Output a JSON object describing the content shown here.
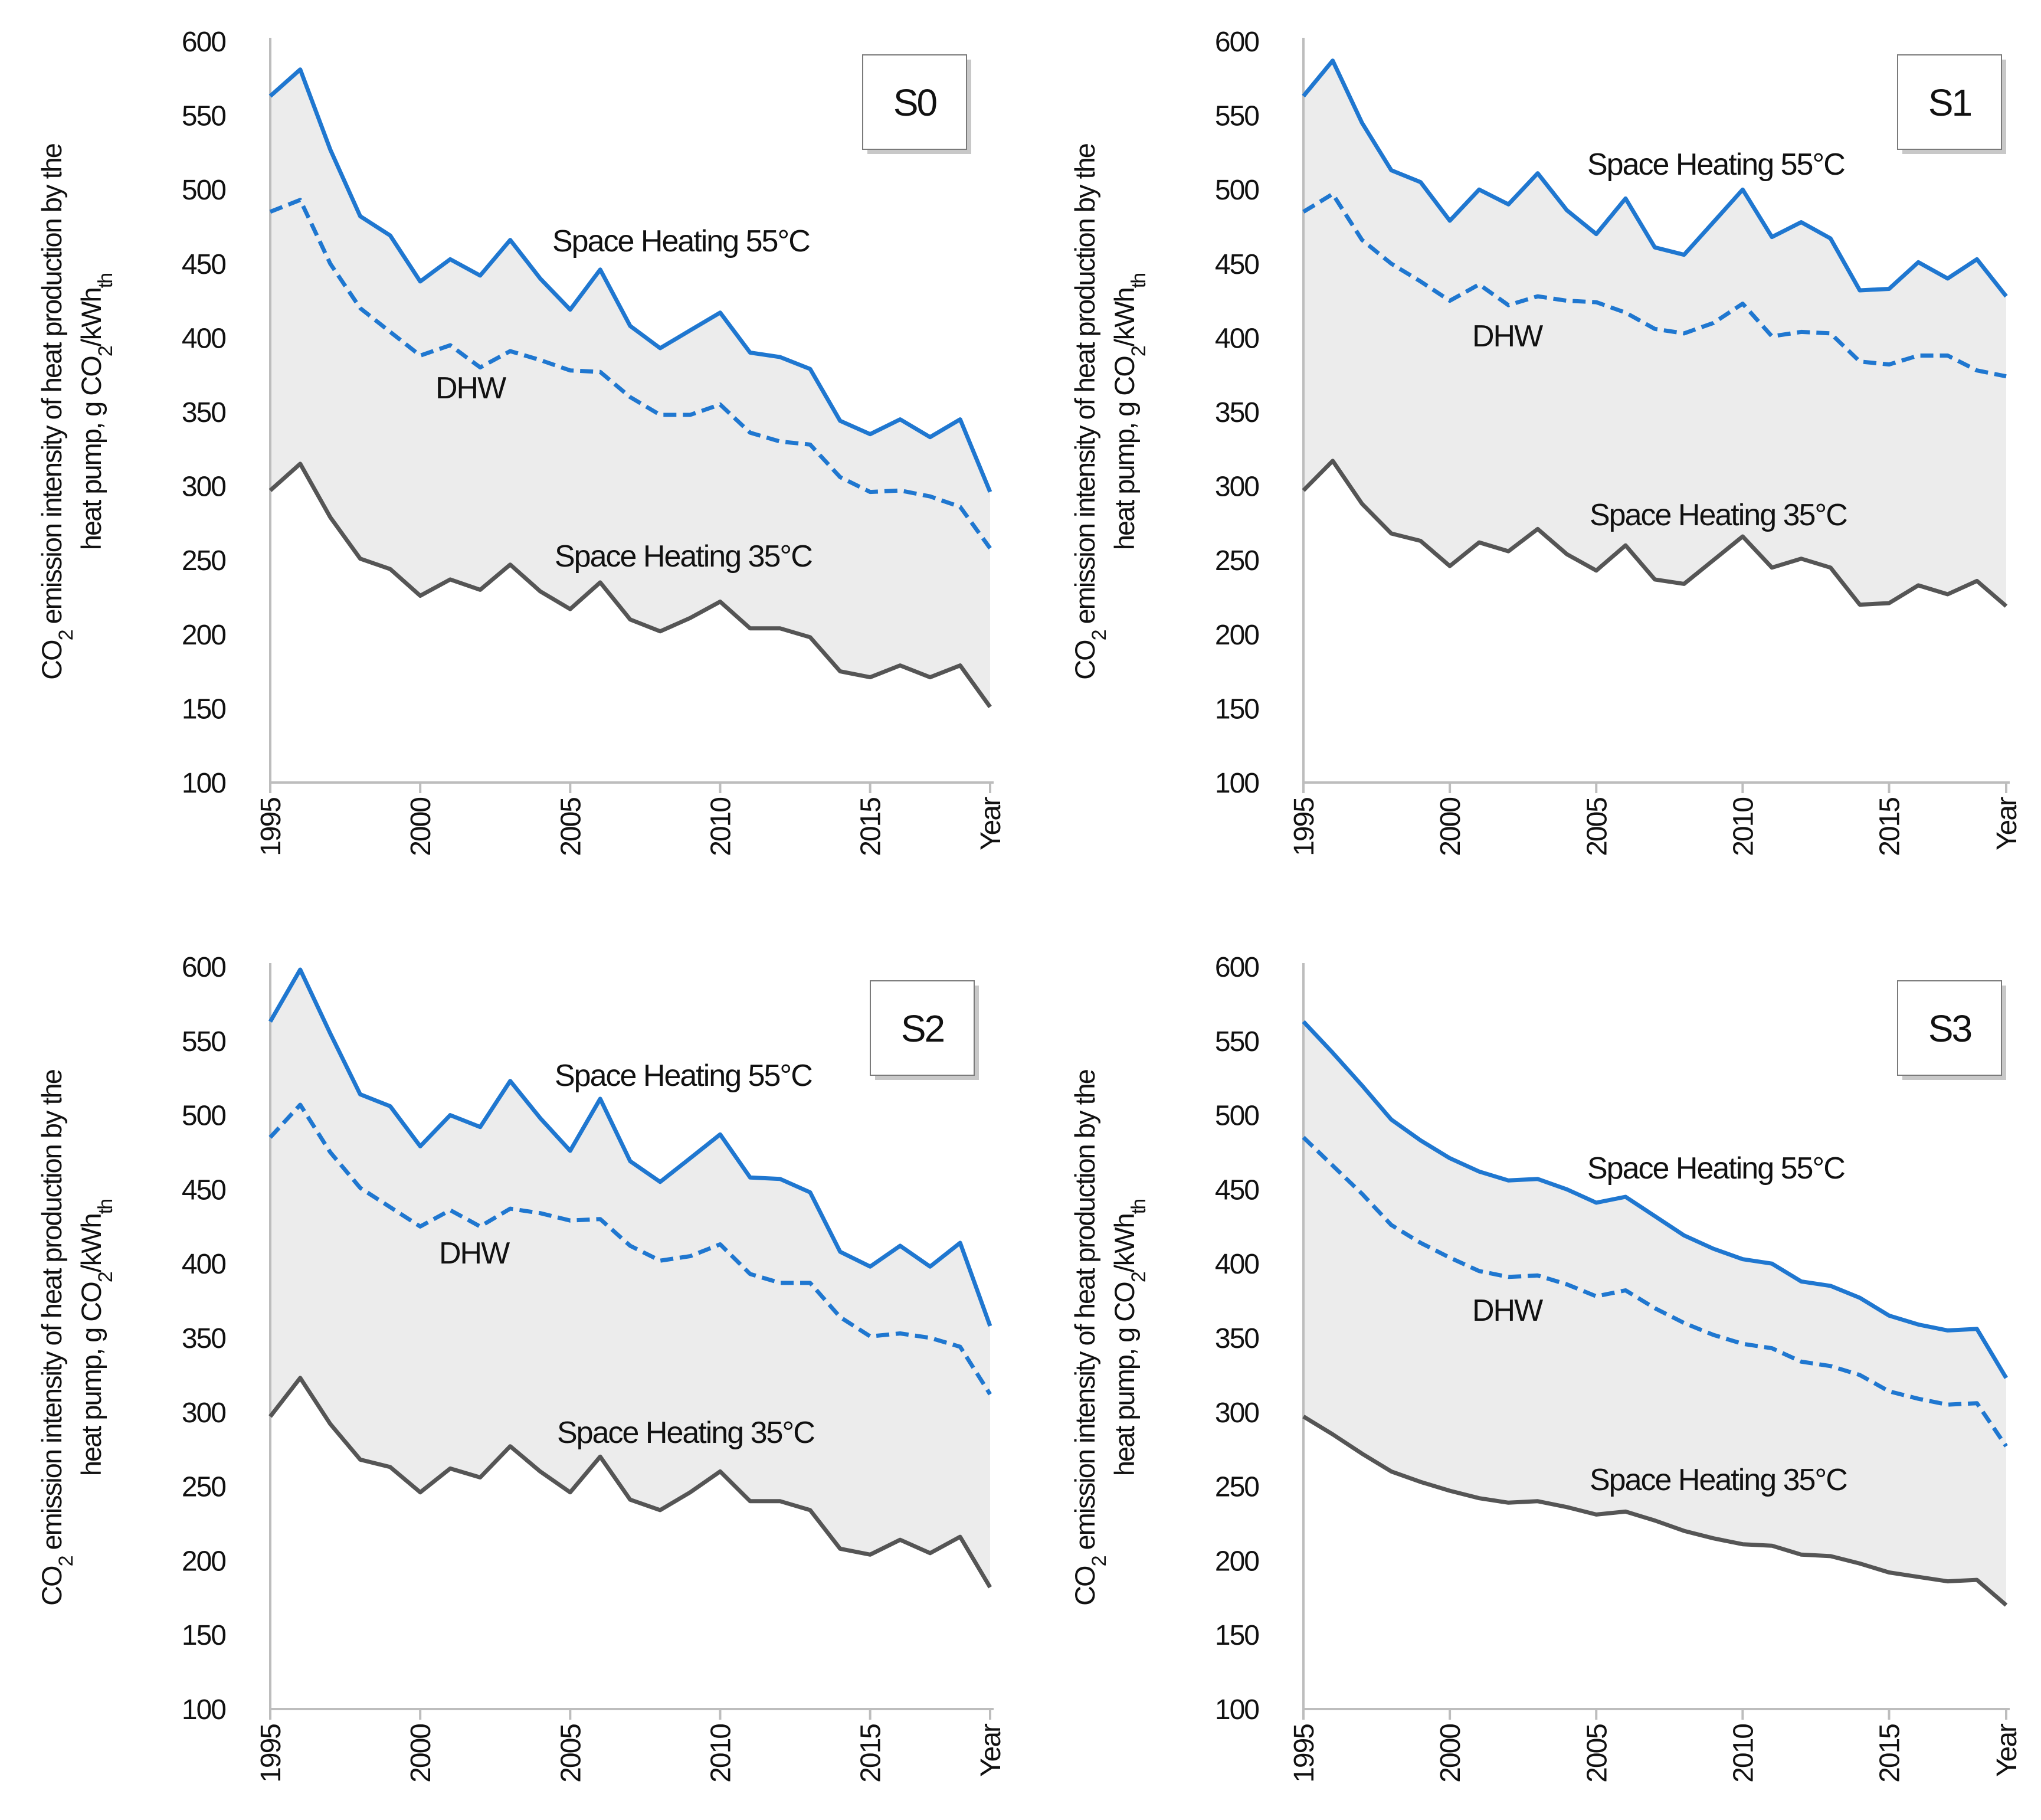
{
  "figure": {
    "ylabel": {
      "line1_co": "CO",
      "line1_sub": "2",
      "line1_rest": " emission intensity of heat production by the",
      "line2_main": "heat pump, g CO",
      "line2_sub": "2",
      "line2_mid": "/kWh",
      "line2_sub2": "th"
    },
    "colors": {
      "sh55": "#1f77d0",
      "dhw": "#1f77d0",
      "sh35": "#555555",
      "fill": "#ececec",
      "axis": "#bdbdbd"
    }
  },
  "chart_data": [
    {
      "type": "line",
      "panel": "S0",
      "ylim": [
        100,
        600
      ],
      "yticks": [
        "600",
        "550",
        "500",
        "450",
        "400",
        "350",
        "300",
        "250",
        "200",
        "150",
        "100"
      ],
      "xticks": [
        "1995",
        "2000",
        "2005",
        "2010",
        "2015",
        "Year"
      ],
      "x": [
        1995,
        1996,
        1997,
        1998,
        1999,
        2000,
        2001,
        2002,
        2003,
        2004,
        2005,
        2006,
        2007,
        2008,
        2009,
        2010,
        2011,
        2012,
        2013,
        2014,
        2015,
        2016,
        2017,
        2018,
        2019
      ],
      "series": [
        {
          "name": "Space Heating 55°C",
          "style": "solid",
          "values": [
            563,
            581,
            527,
            482,
            469,
            438,
            453,
            442,
            466,
            440,
            419,
            446,
            408,
            393,
            405,
            417,
            390,
            387,
            379,
            344,
            335,
            345,
            333,
            345,
            296
          ]
        },
        {
          "name": "DHW",
          "style": "dashed",
          "values": [
            485,
            493,
            450,
            420,
            404,
            388,
            395,
            380,
            391,
            385,
            378,
            377,
            360,
            348,
            348,
            355,
            336,
            330,
            328,
            306,
            296,
            297,
            293,
            286,
            258
          ]
        },
        {
          "name": "Space Heating 35°C",
          "style": "solid",
          "values": [
            297,
            315,
            279,
            251,
            244,
            226,
            237,
            230,
            247,
            229,
            217,
            235,
            210,
            202,
            211,
            222,
            204,
            204,
            198,
            175,
            171,
            179,
            171,
            179,
            151
          ]
        }
      ],
      "labels": {
        "sh55": "Space Heating 55°C",
        "dhw": "DHW",
        "sh35": "Space Heating 35°C"
      }
    },
    {
      "type": "line",
      "panel": "S1",
      "ylim": [
        100,
        600
      ],
      "yticks": [
        "600",
        "550",
        "500",
        "450",
        "400",
        "350",
        "300",
        "250",
        "200",
        "150",
        "100"
      ],
      "xticks": [
        "1995",
        "2000",
        "2005",
        "2010",
        "2015",
        "Year"
      ],
      "x": [
        1995,
        1996,
        1997,
        1998,
        1999,
        2000,
        2001,
        2002,
        2003,
        2004,
        2005,
        2006,
        2007,
        2008,
        2009,
        2010,
        2011,
        2012,
        2013,
        2014,
        2015,
        2016,
        2017,
        2018,
        2019
      ],
      "series": [
        {
          "name": "Space Heating 55°C",
          "style": "solid",
          "values": [
            563,
            587,
            545,
            513,
            505,
            479,
            500,
            490,
            511,
            486,
            470,
            494,
            461,
            456,
            478,
            500,
            468,
            478,
            467,
            432,
            433,
            451,
            440,
            453,
            428
          ]
        },
        {
          "name": "DHW",
          "style": "dashed",
          "values": [
            485,
            497,
            466,
            450,
            438,
            425,
            436,
            422,
            428,
            425,
            424,
            417,
            406,
            403,
            410,
            423,
            401,
            404,
            403,
            384,
            382,
            388,
            388,
            378,
            374
          ]
        },
        {
          "name": "Space Heating 35°C",
          "style": "solid",
          "values": [
            297,
            317,
            288,
            268,
            263,
            246,
            262,
            256,
            271,
            254,
            243,
            260,
            237,
            234,
            250,
            266,
            245,
            251,
            245,
            220,
            221,
            233,
            227,
            236,
            219
          ]
        }
      ],
      "labels": {
        "sh55": "Space Heating 55°C",
        "dhw": "DHW",
        "sh35": "Space Heating 35°C"
      }
    },
    {
      "type": "line",
      "panel": "S2",
      "ylim": [
        100,
        600
      ],
      "yticks": [
        "600",
        "550",
        "500",
        "450",
        "400",
        "350",
        "300",
        "250",
        "200",
        "150",
        "100"
      ],
      "xticks": [
        "1995",
        "2000",
        "2005",
        "2010",
        "2015",
        "Year"
      ],
      "x": [
        1995,
        1996,
        1997,
        1998,
        1999,
        2000,
        2001,
        2002,
        2003,
        2004,
        2005,
        2006,
        2007,
        2008,
        2009,
        2010,
        2011,
        2012,
        2013,
        2014,
        2015,
        2016,
        2017,
        2018,
        2019
      ],
      "series": [
        {
          "name": "Space Heating 55°C",
          "style": "solid",
          "values": [
            563,
            598,
            555,
            514,
            506,
            479,
            500,
            492,
            523,
            498,
            476,
            511,
            469,
            455,
            471,
            487,
            458,
            457,
            448,
            408,
            398,
            412,
            398,
            414,
            358
          ]
        },
        {
          "name": "DHW",
          "style": "dashed",
          "values": [
            485,
            507,
            475,
            451,
            438,
            425,
            436,
            425,
            437,
            434,
            429,
            430,
            412,
            402,
            405,
            413,
            393,
            387,
            387,
            364,
            351,
            353,
            350,
            344,
            312
          ]
        },
        {
          "name": "Space Heating 35°C",
          "style": "solid",
          "values": [
            297,
            323,
            292,
            268,
            263,
            246,
            262,
            256,
            277,
            260,
            246,
            270,
            241,
            234,
            246,
            260,
            240,
            240,
            234,
            208,
            204,
            214,
            205,
            216,
            182
          ]
        }
      ],
      "labels": {
        "sh55": "Space Heating 55°C",
        "dhw": "DHW",
        "sh35": "Space Heating 35°C"
      }
    },
    {
      "type": "line",
      "panel": "S3",
      "ylim": [
        100,
        600
      ],
      "yticks": [
        "600",
        "550",
        "500",
        "450",
        "400",
        "350",
        "300",
        "250",
        "200",
        "150",
        "100"
      ],
      "xticks": [
        "1995",
        "2000",
        "2005",
        "2010",
        "2015",
        "Year"
      ],
      "x": [
        1995,
        1996,
        1997,
        1998,
        1999,
        2000,
        2001,
        2002,
        2003,
        2004,
        2005,
        2006,
        2007,
        2008,
        2009,
        2010,
        2011,
        2012,
        2013,
        2014,
        2015,
        2016,
        2017,
        2018,
        2019
      ],
      "series": [
        {
          "name": "Space Heating 55°C",
          "style": "solid",
          "values": [
            563,
            542,
            520,
            497,
            483,
            471,
            462,
            456,
            457,
            450,
            441,
            445,
            432,
            419,
            410,
            403,
            400,
            388,
            385,
            377,
            365,
            359,
            355,
            356,
            323
          ]
        },
        {
          "name": "DHW",
          "style": "dashed",
          "values": [
            485,
            466,
            447,
            426,
            414,
            404,
            395,
            391,
            392,
            386,
            378,
            382,
            370,
            360,
            352,
            346,
            343,
            334,
            331,
            325,
            314,
            309,
            305,
            306,
            277
          ]
        },
        {
          "name": "Space Heating 35°C",
          "style": "solid",
          "values": [
            297,
            285,
            272,
            260,
            253,
            247,
            242,
            239,
            240,
            236,
            231,
            233,
            227,
            220,
            215,
            211,
            210,
            204,
            203,
            198,
            192,
            189,
            186,
            187,
            170
          ]
        }
      ],
      "labels": {
        "sh55": "Space Heating 55°C",
        "dhw": "DHW",
        "sh35": "Space Heating 35°C"
      }
    }
  ]
}
